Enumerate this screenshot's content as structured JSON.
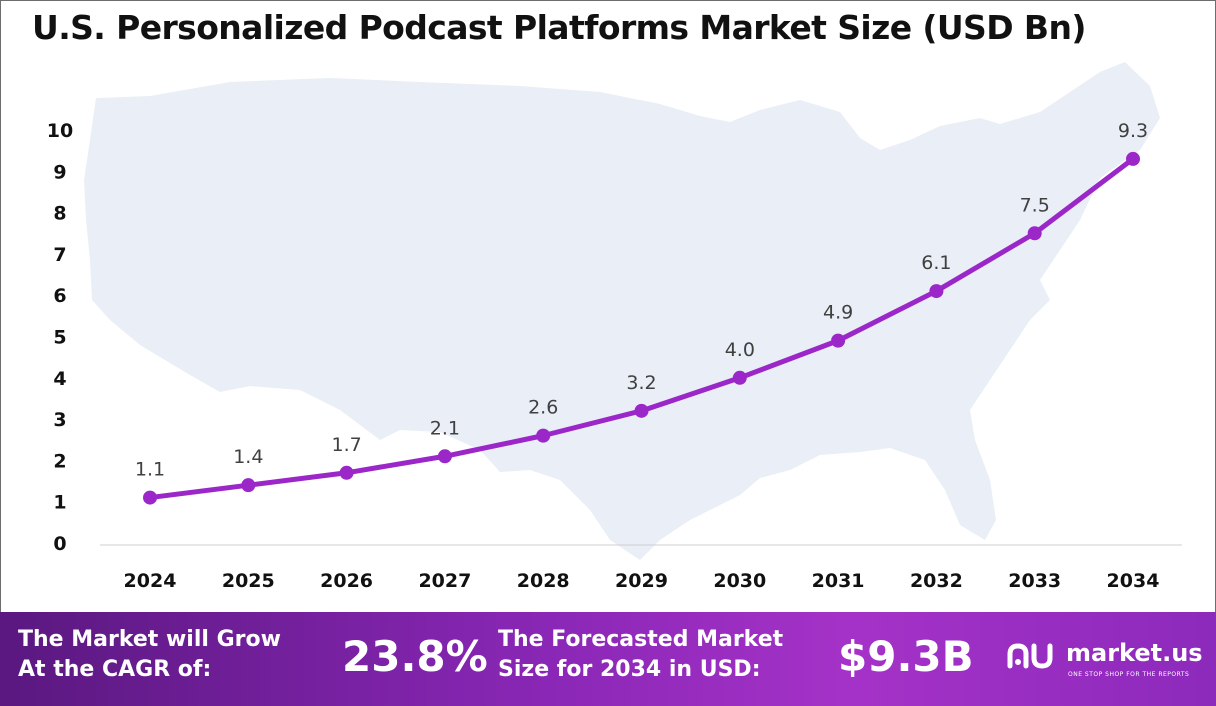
{
  "title": "U.S. Personalized Podcast Platforms Market Size (USD Bn)",
  "chart_data": {
    "type": "line",
    "categories": [
      "2024",
      "2025",
      "2026",
      "2027",
      "2028",
      "2029",
      "2030",
      "2031",
      "2032",
      "2033",
      "2034"
    ],
    "values": [
      1.1,
      1.4,
      1.7,
      2.1,
      2.6,
      3.2,
      4.0,
      4.9,
      6.1,
      7.5,
      9.3
    ],
    "data_labels": [
      "1.1",
      "1.4",
      "1.7",
      "2.1",
      "2.6",
      "3.2",
      "4.0",
      "4.9",
      "6.1",
      "7.5",
      "9.3"
    ],
    "y_ticks": [
      "0",
      "1",
      "2",
      "3",
      "4",
      "5",
      "6",
      "7",
      "8",
      "9",
      "10"
    ],
    "ylim": [
      0,
      10
    ],
    "grid": false,
    "line_color": "#9b27c9",
    "label_color": "#404040"
  },
  "footer": {
    "cagr_label_line1": "The Market will Grow",
    "cagr_label_line2": "At the CAGR of:",
    "cagr_value": "23.8%",
    "forecast_label_line1": "The Forecasted Market",
    "forecast_label_line2": "Size for 2034 in USD:",
    "forecast_value": "$9.3B"
  },
  "brand": {
    "name": "market.us",
    "tagline": "ONE STOP SHOP FOR THE REPORTS",
    "icon": "market-us-logo-icon"
  },
  "colors": {
    "accent": "#9b27c9",
    "footer_start": "#5a1880",
    "footer_end": "#a532c8",
    "map_fill": "#e9eef7"
  }
}
